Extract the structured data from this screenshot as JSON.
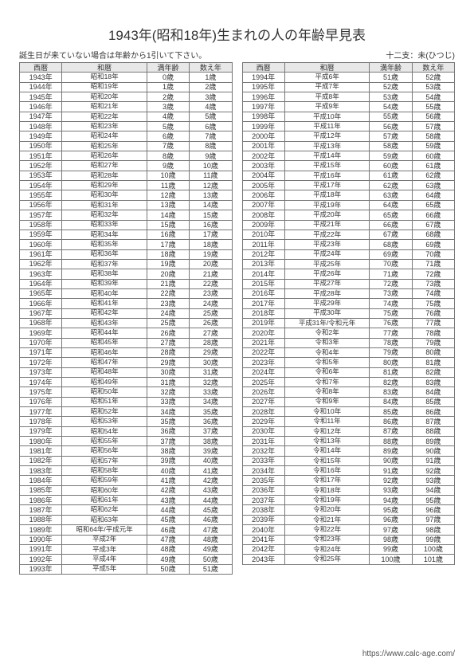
{
  "title": "1943年(昭和18年)生まれの人の年齢早見表",
  "subtitle_left": "誕生日が来ていない場合は年齢から1引いて下さい。",
  "subtitle_right": "十二支：未(ひつじ)",
  "columns": [
    "西暦",
    "和暦",
    "満年齢",
    "数え年"
  ],
  "footer_url": "https://www.calc-age.com/",
  "colors": {
    "text": "#333333",
    "border": "#777777",
    "header_bg": "#e8e8e8",
    "background": "#ffffff"
  },
  "left_rows": [
    [
      "1943年",
      "昭和18年",
      "0歳",
      "1歳"
    ],
    [
      "1944年",
      "昭和19年",
      "1歳",
      "2歳"
    ],
    [
      "1945年",
      "昭和20年",
      "2歳",
      "3歳"
    ],
    [
      "1946年",
      "昭和21年",
      "3歳",
      "4歳"
    ],
    [
      "1947年",
      "昭和22年",
      "4歳",
      "5歳"
    ],
    [
      "1948年",
      "昭和23年",
      "5歳",
      "6歳"
    ],
    [
      "1949年",
      "昭和24年",
      "6歳",
      "7歳"
    ],
    [
      "1950年",
      "昭和25年",
      "7歳",
      "8歳"
    ],
    [
      "1951年",
      "昭和26年",
      "8歳",
      "9歳"
    ],
    [
      "1952年",
      "昭和27年",
      "9歳",
      "10歳"
    ],
    [
      "1953年",
      "昭和28年",
      "10歳",
      "11歳"
    ],
    [
      "1954年",
      "昭和29年",
      "11歳",
      "12歳"
    ],
    [
      "1955年",
      "昭和30年",
      "12歳",
      "13歳"
    ],
    [
      "1956年",
      "昭和31年",
      "13歳",
      "14歳"
    ],
    [
      "1957年",
      "昭和32年",
      "14歳",
      "15歳"
    ],
    [
      "1958年",
      "昭和33年",
      "15歳",
      "16歳"
    ],
    [
      "1959年",
      "昭和34年",
      "16歳",
      "17歳"
    ],
    [
      "1960年",
      "昭和35年",
      "17歳",
      "18歳"
    ],
    [
      "1961年",
      "昭和36年",
      "18歳",
      "19歳"
    ],
    [
      "1962年",
      "昭和37年",
      "19歳",
      "20歳"
    ],
    [
      "1963年",
      "昭和38年",
      "20歳",
      "21歳"
    ],
    [
      "1964年",
      "昭和39年",
      "21歳",
      "22歳"
    ],
    [
      "1965年",
      "昭和40年",
      "22歳",
      "23歳"
    ],
    [
      "1966年",
      "昭和41年",
      "23歳",
      "24歳"
    ],
    [
      "1967年",
      "昭和42年",
      "24歳",
      "25歳"
    ],
    [
      "1968年",
      "昭和43年",
      "25歳",
      "26歳"
    ],
    [
      "1969年",
      "昭和44年",
      "26歳",
      "27歳"
    ],
    [
      "1970年",
      "昭和45年",
      "27歳",
      "28歳"
    ],
    [
      "1971年",
      "昭和46年",
      "28歳",
      "29歳"
    ],
    [
      "1972年",
      "昭和47年",
      "29歳",
      "30歳"
    ],
    [
      "1973年",
      "昭和48年",
      "30歳",
      "31歳"
    ],
    [
      "1974年",
      "昭和49年",
      "31歳",
      "32歳"
    ],
    [
      "1975年",
      "昭和50年",
      "32歳",
      "33歳"
    ],
    [
      "1976年",
      "昭和51年",
      "33歳",
      "34歳"
    ],
    [
      "1977年",
      "昭和52年",
      "34歳",
      "35歳"
    ],
    [
      "1978年",
      "昭和53年",
      "35歳",
      "36歳"
    ],
    [
      "1979年",
      "昭和54年",
      "36歳",
      "37歳"
    ],
    [
      "1980年",
      "昭和55年",
      "37歳",
      "38歳"
    ],
    [
      "1981年",
      "昭和56年",
      "38歳",
      "39歳"
    ],
    [
      "1982年",
      "昭和57年",
      "39歳",
      "40歳"
    ],
    [
      "1983年",
      "昭和58年",
      "40歳",
      "41歳"
    ],
    [
      "1984年",
      "昭和59年",
      "41歳",
      "42歳"
    ],
    [
      "1985年",
      "昭和60年",
      "42歳",
      "43歳"
    ],
    [
      "1986年",
      "昭和61年",
      "43歳",
      "44歳"
    ],
    [
      "1987年",
      "昭和62年",
      "44歳",
      "45歳"
    ],
    [
      "1988年",
      "昭和63年",
      "45歳",
      "46歳"
    ],
    [
      "1989年",
      "昭和64年/平成元年",
      "46歳",
      "47歳"
    ],
    [
      "1990年",
      "平成2年",
      "47歳",
      "48歳"
    ],
    [
      "1991年",
      "平成3年",
      "48歳",
      "49歳"
    ],
    [
      "1992年",
      "平成4年",
      "49歳",
      "50歳"
    ],
    [
      "1993年",
      "平成5年",
      "50歳",
      "51歳"
    ]
  ],
  "right_rows": [
    [
      "1994年",
      "平成6年",
      "51歳",
      "52歳"
    ],
    [
      "1995年",
      "平成7年",
      "52歳",
      "53歳"
    ],
    [
      "1996年",
      "平成8年",
      "53歳",
      "54歳"
    ],
    [
      "1997年",
      "平成9年",
      "54歳",
      "55歳"
    ],
    [
      "1998年",
      "平成10年",
      "55歳",
      "56歳"
    ],
    [
      "1999年",
      "平成11年",
      "56歳",
      "57歳"
    ],
    [
      "2000年",
      "平成12年",
      "57歳",
      "58歳"
    ],
    [
      "2001年",
      "平成13年",
      "58歳",
      "59歳"
    ],
    [
      "2002年",
      "平成14年",
      "59歳",
      "60歳"
    ],
    [
      "2003年",
      "平成15年",
      "60歳",
      "61歳"
    ],
    [
      "2004年",
      "平成16年",
      "61歳",
      "62歳"
    ],
    [
      "2005年",
      "平成17年",
      "62歳",
      "63歳"
    ],
    [
      "2006年",
      "平成18年",
      "63歳",
      "64歳"
    ],
    [
      "2007年",
      "平成19年",
      "64歳",
      "65歳"
    ],
    [
      "2008年",
      "平成20年",
      "65歳",
      "66歳"
    ],
    [
      "2009年",
      "平成21年",
      "66歳",
      "67歳"
    ],
    [
      "2010年",
      "平成22年",
      "67歳",
      "68歳"
    ],
    [
      "2011年",
      "平成23年",
      "68歳",
      "69歳"
    ],
    [
      "2012年",
      "平成24年",
      "69歳",
      "70歳"
    ],
    [
      "2013年",
      "平成25年",
      "70歳",
      "71歳"
    ],
    [
      "2014年",
      "平成26年",
      "71歳",
      "72歳"
    ],
    [
      "2015年",
      "平成27年",
      "72歳",
      "73歳"
    ],
    [
      "2016年",
      "平成28年",
      "73歳",
      "74歳"
    ],
    [
      "2017年",
      "平成29年",
      "74歳",
      "75歳"
    ],
    [
      "2018年",
      "平成30年",
      "75歳",
      "76歳"
    ],
    [
      "2019年",
      "平成31年/令和元年",
      "76歳",
      "77歳"
    ],
    [
      "2020年",
      "令和2年",
      "77歳",
      "78歳"
    ],
    [
      "2021年",
      "令和3年",
      "78歳",
      "79歳"
    ],
    [
      "2022年",
      "令和4年",
      "79歳",
      "80歳"
    ],
    [
      "2023年",
      "令和5年",
      "80歳",
      "81歳"
    ],
    [
      "2024年",
      "令和6年",
      "81歳",
      "82歳"
    ],
    [
      "2025年",
      "令和7年",
      "82歳",
      "83歳"
    ],
    [
      "2026年",
      "令和8年",
      "83歳",
      "84歳"
    ],
    [
      "2027年",
      "令和9年",
      "84歳",
      "85歳"
    ],
    [
      "2028年",
      "令和10年",
      "85歳",
      "86歳"
    ],
    [
      "2029年",
      "令和11年",
      "86歳",
      "87歳"
    ],
    [
      "2030年",
      "令和12年",
      "87歳",
      "88歳"
    ],
    [
      "2031年",
      "令和13年",
      "88歳",
      "89歳"
    ],
    [
      "2032年",
      "令和14年",
      "89歳",
      "90歳"
    ],
    [
      "2033年",
      "令和15年",
      "90歳",
      "91歳"
    ],
    [
      "2034年",
      "令和16年",
      "91歳",
      "92歳"
    ],
    [
      "2035年",
      "令和17年",
      "92歳",
      "93歳"
    ],
    [
      "2036年",
      "令和18年",
      "93歳",
      "94歳"
    ],
    [
      "2037年",
      "令和19年",
      "94歳",
      "95歳"
    ],
    [
      "2038年",
      "令和20年",
      "95歳",
      "96歳"
    ],
    [
      "2039年",
      "令和21年",
      "96歳",
      "97歳"
    ],
    [
      "2040年",
      "令和22年",
      "97歳",
      "98歳"
    ],
    [
      "2041年",
      "令和23年",
      "98歳",
      "99歳"
    ],
    [
      "2042年",
      "令和24年",
      "99歳",
      "100歳"
    ],
    [
      "2043年",
      "令和25年",
      "100歳",
      "101歳"
    ]
  ]
}
